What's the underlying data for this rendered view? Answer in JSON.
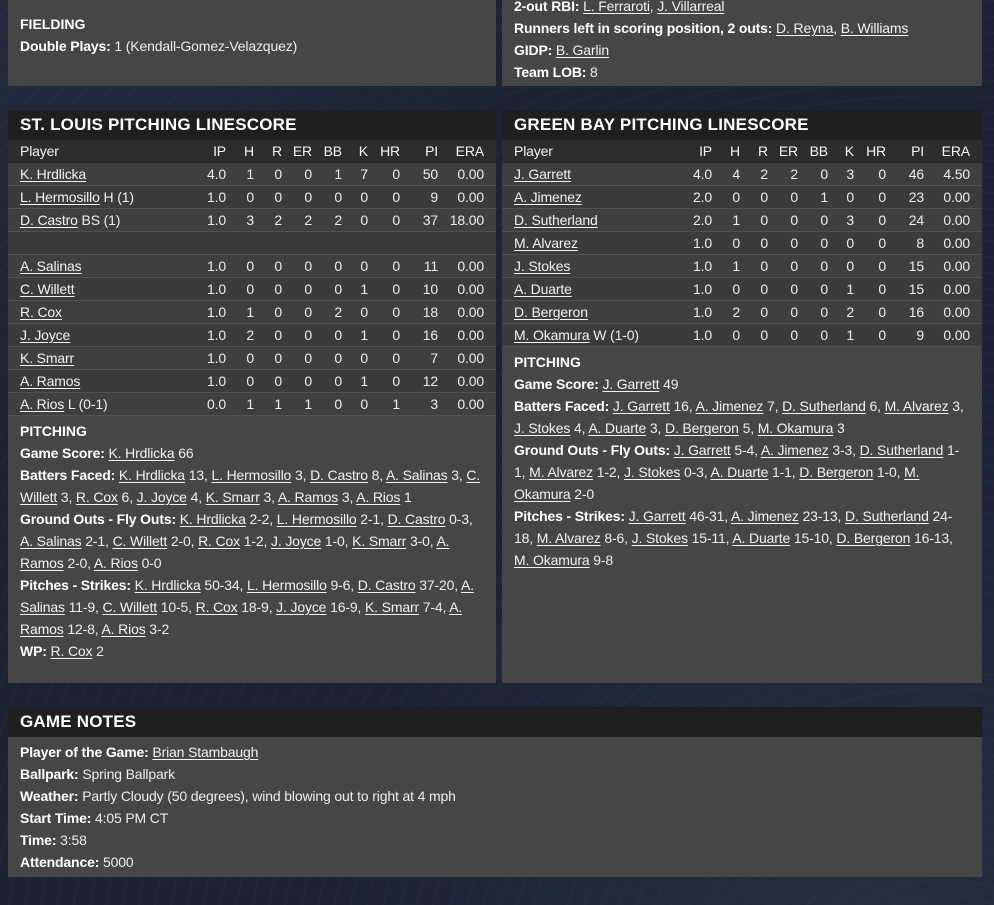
{
  "colors": {
    "page_bg": "#1c2433",
    "panel_bg": "#464646",
    "title_band_bg": "#1f1f1f",
    "table_header_bg": "#2d2d2d",
    "row_dark": "#3b3b3b",
    "row_light": "#3f3f3f",
    "text": "#ededed",
    "bold_text": "#ffffff"
  },
  "fielding": {
    "title": "FIELDING",
    "lines": [
      [
        [
          "b",
          "Double Plays: "
        ],
        [
          "t",
          "1 (Kendall-Gomez-Velazquez)"
        ]
      ]
    ]
  },
  "batting_notes": {
    "lines": [
      [
        [
          "b",
          "2-out RBI: "
        ],
        [
          "l",
          "L. Ferraroti"
        ],
        [
          "t",
          ", "
        ],
        [
          "l",
          "J. Villarreal"
        ]
      ],
      [
        [
          "b",
          "Runners left in scoring position, 2 outs: "
        ],
        [
          "l",
          "D. Reyna"
        ],
        [
          "t",
          ", "
        ],
        [
          "l",
          "B. Williams"
        ]
      ],
      [
        [
          "b",
          "GIDP: "
        ],
        [
          "l",
          "B. Garlin"
        ]
      ],
      [
        [
          "b",
          "Team LOB: "
        ],
        [
          "t",
          "8"
        ]
      ]
    ]
  },
  "stl": {
    "title": "ST. LOUIS PITCHING LINESCORE",
    "table": {
      "player_header": "Player",
      "columns": [
        {
          "key": "ip",
          "label": "IP"
        },
        {
          "key": "h",
          "label": "H"
        },
        {
          "key": "r",
          "label": "R"
        },
        {
          "key": "er",
          "label": "ER"
        },
        {
          "key": "bb",
          "label": "BB"
        },
        {
          "key": "k",
          "label": "K"
        },
        {
          "key": "hr",
          "label": "HR"
        },
        {
          "key": "pi",
          "label": "PI"
        },
        {
          "key": "era",
          "label": "ERA"
        }
      ],
      "rows": [
        {
          "name": "K. Hrdlicka",
          "note": "",
          "ip": "4.0",
          "h": "1",
          "r": "0",
          "er": "0",
          "bb": "1",
          "k": "7",
          "hr": "0",
          "pi": "50",
          "era": "0.00"
        },
        {
          "name": "L. Hermosillo",
          "note": "H (1)",
          "ip": "1.0",
          "h": "0",
          "r": "0",
          "er": "0",
          "bb": "0",
          "k": "0",
          "hr": "0",
          "pi": "9",
          "era": "0.00"
        },
        {
          "name": "D. Castro",
          "note": "BS (1)",
          "ip": "1.0",
          "h": "3",
          "r": "2",
          "er": "2",
          "bb": "2",
          "k": "0",
          "hr": "0",
          "pi": "37",
          "era": "18.00"
        },
        {
          "spacer": true
        },
        {
          "name": "A. Salinas",
          "note": "",
          "ip": "1.0",
          "h": "0",
          "r": "0",
          "er": "0",
          "bb": "0",
          "k": "0",
          "hr": "0",
          "pi": "11",
          "era": "0.00"
        },
        {
          "name": "C. Willett",
          "note": "",
          "ip": "1.0",
          "h": "0",
          "r": "0",
          "er": "0",
          "bb": "0",
          "k": "1",
          "hr": "0",
          "pi": "10",
          "era": "0.00"
        },
        {
          "name": "R. Cox",
          "note": "",
          "ip": "1.0",
          "h": "1",
          "r": "0",
          "er": "0",
          "bb": "2",
          "k": "0",
          "hr": "0",
          "pi": "18",
          "era": "0.00"
        },
        {
          "name": "J. Joyce",
          "note": "",
          "ip": "1.0",
          "h": "2",
          "r": "0",
          "er": "0",
          "bb": "0",
          "k": "1",
          "hr": "0",
          "pi": "16",
          "era": "0.00"
        },
        {
          "name": "K. Smarr",
          "note": "",
          "ip": "1.0",
          "h": "0",
          "r": "0",
          "er": "0",
          "bb": "0",
          "k": "0",
          "hr": "0",
          "pi": "7",
          "era": "0.00"
        },
        {
          "name": "A. Ramos",
          "note": "",
          "ip": "1.0",
          "h": "0",
          "r": "0",
          "er": "0",
          "bb": "0",
          "k": "1",
          "hr": "0",
          "pi": "12",
          "era": "0.00"
        },
        {
          "name": "A. Rios",
          "note": "L (0-1)",
          "ip": "0.0",
          "h": "1",
          "r": "1",
          "er": "1",
          "bb": "0",
          "k": "0",
          "hr": "1",
          "pi": "3",
          "era": "0.00"
        }
      ]
    },
    "pitching": {
      "heading": "PITCHING",
      "lines": [
        [
          [
            "b",
            "Game Score: "
          ],
          [
            "l",
            "K. Hrdlicka"
          ],
          [
            "t",
            " 66"
          ]
        ],
        [
          [
            "b",
            "Batters Faced: "
          ],
          [
            "l",
            "K. Hrdlicka"
          ],
          [
            "t",
            " 13, "
          ],
          [
            "l",
            "L. Hermosillo"
          ],
          [
            "t",
            " 3, "
          ],
          [
            "l",
            "D. Castro"
          ],
          [
            "t",
            " 8, "
          ],
          [
            "l",
            "A. Salinas"
          ],
          [
            "t",
            " 3, "
          ],
          [
            "l",
            "C. Willett"
          ],
          [
            "t",
            " 3, "
          ],
          [
            "l",
            "R. Cox"
          ],
          [
            "t",
            " 6, "
          ],
          [
            "l",
            "J. Joyce"
          ],
          [
            "t",
            " 4, "
          ],
          [
            "l",
            "K. Smarr"
          ],
          [
            "t",
            " 3, "
          ],
          [
            "l",
            "A. Ramos"
          ],
          [
            "t",
            " 3, "
          ],
          [
            "l",
            "A. Rios"
          ],
          [
            "t",
            " 1"
          ]
        ],
        [
          [
            "b",
            "Ground Outs - Fly Outs: "
          ],
          [
            "l",
            "K. Hrdlicka"
          ],
          [
            "t",
            " 2-2, "
          ],
          [
            "l",
            "L. Hermosillo"
          ],
          [
            "t",
            " 2-1, "
          ],
          [
            "l",
            "D. Castro"
          ],
          [
            "t",
            " 0-3, "
          ],
          [
            "l",
            "A. Salinas"
          ],
          [
            "t",
            " 2-1, "
          ],
          [
            "l",
            "C. Willett"
          ],
          [
            "t",
            " 2-0, "
          ],
          [
            "l",
            "R. Cox"
          ],
          [
            "t",
            " 1-2, "
          ],
          [
            "l",
            "J. Joyce"
          ],
          [
            "t",
            " 1-0, "
          ],
          [
            "l",
            "K. Smarr"
          ],
          [
            "t",
            " 3-0, "
          ],
          [
            "l",
            "A. Ramos"
          ],
          [
            "t",
            " 2-0, "
          ],
          [
            "l",
            "A. Rios"
          ],
          [
            "t",
            " 0-0"
          ]
        ],
        [
          [
            "b",
            "Pitches - Strikes: "
          ],
          [
            "l",
            "K. Hrdlicka"
          ],
          [
            "t",
            " 50-34, "
          ],
          [
            "l",
            "L. Hermosillo"
          ],
          [
            "t",
            " 9-6, "
          ],
          [
            "l",
            "D. Castro"
          ],
          [
            "t",
            " 37-20, "
          ],
          [
            "l",
            "A. Salinas"
          ],
          [
            "t",
            " 11-9, "
          ],
          [
            "l",
            "C. Willett"
          ],
          [
            "t",
            " 10-5, "
          ],
          [
            "l",
            "R. Cox"
          ],
          [
            "t",
            " 18-9, "
          ],
          [
            "l",
            "J. Joyce"
          ],
          [
            "t",
            " 16-9, "
          ],
          [
            "l",
            "K. Smarr"
          ],
          [
            "t",
            " 7-4, "
          ],
          [
            "l",
            "A. Ramos"
          ],
          [
            "t",
            " 12-8, "
          ],
          [
            "l",
            "A. Rios"
          ],
          [
            "t",
            " 3-2"
          ]
        ],
        [
          [
            "b",
            "WP: "
          ],
          [
            "l",
            "R. Cox"
          ],
          [
            "t",
            " 2"
          ]
        ]
      ]
    }
  },
  "gb": {
    "title": "GREEN BAY PITCHING LINESCORE",
    "table": {
      "player_header": "Player",
      "columns": [
        {
          "key": "ip",
          "label": "IP"
        },
        {
          "key": "h",
          "label": "H"
        },
        {
          "key": "r",
          "label": "R"
        },
        {
          "key": "er",
          "label": "ER"
        },
        {
          "key": "bb",
          "label": "BB"
        },
        {
          "key": "k",
          "label": "K"
        },
        {
          "key": "hr",
          "label": "HR"
        },
        {
          "key": "pi",
          "label": "PI"
        },
        {
          "key": "era",
          "label": "ERA"
        }
      ],
      "rows": [
        {
          "name": "J. Garrett",
          "note": "",
          "ip": "4.0",
          "h": "4",
          "r": "2",
          "er": "2",
          "bb": "0",
          "k": "3",
          "hr": "0",
          "pi": "46",
          "era": "4.50"
        },
        {
          "name": "A. Jimenez",
          "note": "",
          "ip": "2.0",
          "h": "0",
          "r": "0",
          "er": "0",
          "bb": "1",
          "k": "0",
          "hr": "0",
          "pi": "23",
          "era": "0.00"
        },
        {
          "name": "D. Sutherland",
          "note": "",
          "ip": "2.0",
          "h": "1",
          "r": "0",
          "er": "0",
          "bb": "0",
          "k": "3",
          "hr": "0",
          "pi": "24",
          "era": "0.00"
        },
        {
          "name": "M. Alvarez",
          "note": "",
          "ip": "1.0",
          "h": "0",
          "r": "0",
          "er": "0",
          "bb": "0",
          "k": "0",
          "hr": "0",
          "pi": "8",
          "era": "0.00"
        },
        {
          "name": "J. Stokes",
          "note": "",
          "ip": "1.0",
          "h": "1",
          "r": "0",
          "er": "0",
          "bb": "0",
          "k": "0",
          "hr": "0",
          "pi": "15",
          "era": "0.00"
        },
        {
          "name": "A. Duarte",
          "note": "",
          "ip": "1.0",
          "h": "0",
          "r": "0",
          "er": "0",
          "bb": "0",
          "k": "1",
          "hr": "0",
          "pi": "15",
          "era": "0.00"
        },
        {
          "name": "D. Bergeron",
          "note": "",
          "ip": "1.0",
          "h": "2",
          "r": "0",
          "er": "0",
          "bb": "0",
          "k": "2",
          "hr": "0",
          "pi": "16",
          "era": "0.00"
        },
        {
          "name": "M. Okamura",
          "note": "W (1-0)",
          "ip": "1.0",
          "h": "0",
          "r": "0",
          "er": "0",
          "bb": "0",
          "k": "1",
          "hr": "0",
          "pi": "9",
          "era": "0.00"
        }
      ]
    },
    "pitching": {
      "heading": "PITCHING",
      "lines": [
        [
          [
            "b",
            "Game Score: "
          ],
          [
            "l",
            "J. Garrett"
          ],
          [
            "t",
            " 49"
          ]
        ],
        [
          [
            "b",
            "Batters Faced: "
          ],
          [
            "l",
            "J. Garrett"
          ],
          [
            "t",
            " 16, "
          ],
          [
            "l",
            "A. Jimenez"
          ],
          [
            "t",
            " 7, "
          ],
          [
            "l",
            "D. Sutherland"
          ],
          [
            "t",
            " 6, "
          ],
          [
            "l",
            "M. Alvarez"
          ],
          [
            "t",
            " 3, "
          ],
          [
            "l",
            "J. Stokes"
          ],
          [
            "t",
            " 4, "
          ],
          [
            "l",
            "A. Duarte"
          ],
          [
            "t",
            " 3, "
          ],
          [
            "l",
            "D. Bergeron"
          ],
          [
            "t",
            " 5, "
          ],
          [
            "l",
            "M. Okamura"
          ],
          [
            "t",
            " 3"
          ]
        ],
        [
          [
            "b",
            "Ground Outs - Fly Outs: "
          ],
          [
            "l",
            "J. Garrett"
          ],
          [
            "t",
            " 5-4, "
          ],
          [
            "l",
            "A. Jimenez"
          ],
          [
            "t",
            " 3-3, "
          ],
          [
            "l",
            "D. Sutherland"
          ],
          [
            "t",
            " 1-1, "
          ],
          [
            "l",
            "M. Alvarez"
          ],
          [
            "t",
            " 1-2, "
          ],
          [
            "l",
            "J. Stokes"
          ],
          [
            "t",
            " 0-3, "
          ],
          [
            "l",
            "A. Duarte"
          ],
          [
            "t",
            " 1-1, "
          ],
          [
            "l",
            "D. Bergeron"
          ],
          [
            "t",
            " 1-0, "
          ],
          [
            "l",
            "M. Okamura"
          ],
          [
            "t",
            " 2-0"
          ]
        ],
        [
          [
            "b",
            "Pitches - Strikes: "
          ],
          [
            "l",
            "J. Garrett"
          ],
          [
            "t",
            " 46-31, "
          ],
          [
            "l",
            "A. Jimenez"
          ],
          [
            "t",
            " 23-13, "
          ],
          [
            "l",
            "D. Sutherland"
          ],
          [
            "t",
            " 24-18, "
          ],
          [
            "l",
            "M. Alvarez"
          ],
          [
            "t",
            " 8-6, "
          ],
          [
            "l",
            "J. Stokes"
          ],
          [
            "t",
            " 15-11, "
          ],
          [
            "l",
            "A. Duarte"
          ],
          [
            "t",
            " 15-10, "
          ],
          [
            "l",
            "D. Bergeron"
          ],
          [
            "t",
            " 16-13, "
          ],
          [
            "l",
            "M. Okamura"
          ],
          [
            "t",
            " 9-8"
          ]
        ]
      ]
    }
  },
  "notes": {
    "title": "GAME NOTES",
    "lines": [
      [
        [
          "b",
          "Player of the Game: "
        ],
        [
          "l",
          "Brian Stambaugh"
        ]
      ],
      [
        [
          "b",
          "Ballpark: "
        ],
        [
          "t",
          "Spring Ballpark"
        ]
      ],
      [
        [
          "b",
          "Weather: "
        ],
        [
          "t",
          "Partly Cloudy (50 degrees), wind blowing out to right at 4 mph"
        ]
      ],
      [
        [
          "b",
          "Start Time: "
        ],
        [
          "t",
          "4:05 PM CT"
        ]
      ],
      [
        [
          "b",
          "Time: "
        ],
        [
          "t",
          "3:58"
        ]
      ],
      [
        [
          "b",
          "Attendance: "
        ],
        [
          "t",
          "5000"
        ]
      ]
    ]
  }
}
